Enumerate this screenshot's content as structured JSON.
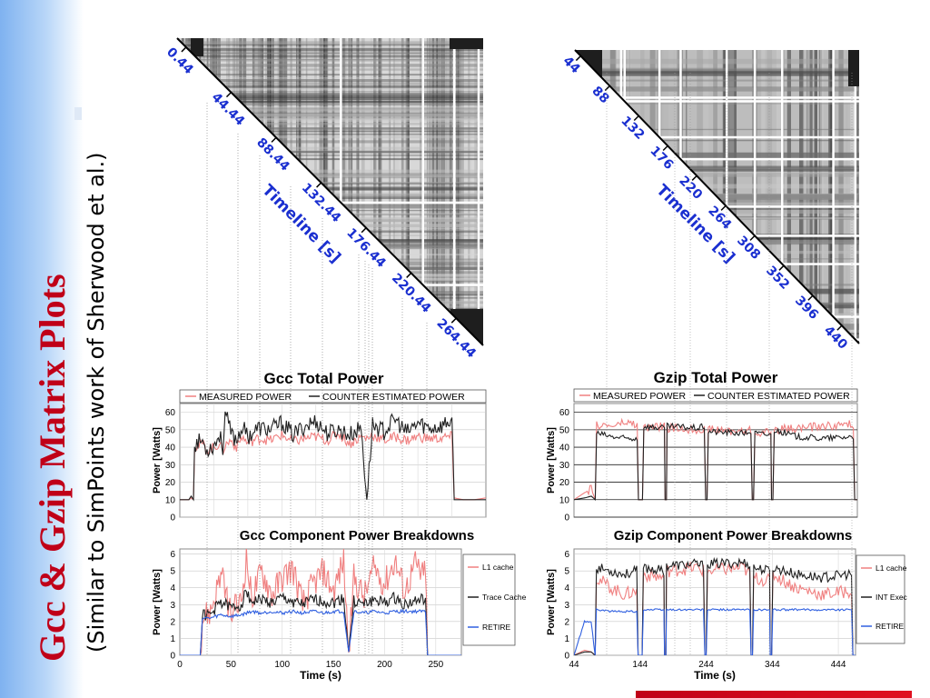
{
  "slide": {
    "title": "Gcc & Gzip Matrix Plots",
    "subtitle": "(Similar to SimPoints work of Sherwood et al.)"
  },
  "matrices": {
    "gcc": {
      "axis_label": "Timeline [s]",
      "ticks": [
        "0.44",
        "44.44",
        "88.44",
        "132.44",
        "176.44",
        "220.44",
        "264.44"
      ]
    },
    "gzip": {
      "axis_label": "Timeline [s]",
      "ticks": [
        "44",
        "88",
        "132",
        "176",
        "220",
        "264",
        "308",
        "352",
        "396",
        "440"
      ]
    }
  },
  "colors": {
    "title": "#c00018",
    "measured": "#f08080",
    "estimated": "#202020",
    "l1": "#f08080",
    "mid": "#202020",
    "retire": "#3060e0",
    "matrix_label": "#1a2fd0"
  },
  "chart_data": [
    {
      "type": "line",
      "title": "Gcc Total Power",
      "xlabel": "",
      "ylabel": "Power [Watts]",
      "xlim": [
        0,
        270
      ],
      "ylim": [
        0,
        65
      ],
      "yticks": [
        0,
        10,
        20,
        30,
        40,
        50,
        60
      ],
      "grid": true,
      "legend_position": "top",
      "series": [
        {
          "name": "MEASURED POWER",
          "color": "#f08080",
          "x": [
            0,
            8,
            10,
            12,
            13,
            20,
            22,
            24,
            30,
            35,
            38,
            40,
            45,
            50,
            55,
            60,
            65,
            70,
            80,
            90,
            100,
            110,
            120,
            130,
            140,
            150,
            160,
            165,
            170,
            180,
            190,
            200,
            210,
            220,
            230,
            238,
            240,
            242,
            250,
            260,
            270
          ],
          "y": [
            10,
            10,
            11,
            10,
            40,
            42,
            40,
            38,
            40,
            42,
            38,
            41,
            44,
            40,
            46,
            42,
            44,
            45,
            44,
            47,
            43,
            45,
            46,
            44,
            48,
            42,
            46,
            45,
            47,
            44,
            46,
            44,
            46,
            45,
            45,
            46,
            46,
            11,
            10,
            10,
            11
          ]
        },
        {
          "name": "COUNTER ESTIMATED POWER",
          "color": "#202020",
          "x": [
            0,
            8,
            10,
            12,
            13,
            20,
            22,
            24,
            30,
            35,
            38,
            40,
            45,
            50,
            55,
            60,
            65,
            70,
            80,
            90,
            100,
            110,
            120,
            130,
            140,
            150,
            160,
            165,
            170,
            180,
            190,
            200,
            210,
            220,
            230,
            238,
            240,
            242,
            250,
            260,
            270
          ],
          "y": [
            10,
            10,
            12,
            10,
            42,
            44,
            40,
            39,
            41,
            47,
            40,
            60,
            48,
            44,
            52,
            46,
            49,
            51,
            50,
            54,
            47,
            52,
            55,
            48,
            50,
            47,
            51,
            10,
            53,
            49,
            56,
            48,
            54,
            51,
            52,
            55,
            55,
            10,
            10,
            10,
            10
          ]
        }
      ]
    },
    {
      "type": "line",
      "title": "Gzip Total Power",
      "xlabel": "",
      "ylabel": "Power [Watts]",
      "xlim": [
        44,
        470
      ],
      "ylim": [
        0,
        65
      ],
      "yticks": [
        0,
        10,
        20,
        30,
        40,
        50,
        60
      ],
      "grid": true,
      "legend_position": "top",
      "series": [
        {
          "name": "MEASURED POWER",
          "color": "#f08080",
          "x": [
            44,
            60,
            70,
            76,
            78,
            100,
            120,
            139,
            141,
            147,
            149,
            180,
            181,
            183,
            184,
            230,
            240,
            242,
            244,
            246,
            300,
            310,
            312,
            314,
            316,
            340,
            341,
            343,
            345,
            380,
            420,
            460,
            464,
            466,
            470
          ],
          "y": [
            10,
            14,
            16,
            10,
            53,
            52,
            54,
            53,
            10,
            10,
            51,
            52,
            10,
            10,
            51,
            50,
            51,
            10,
            10,
            50,
            49,
            50,
            10,
            10,
            48,
            49,
            10,
            10,
            50,
            51,
            52,
            53,
            53,
            10,
            10
          ]
        },
        {
          "name": "COUNTER ESTIMATED POWER",
          "color": "#202020",
          "x": [
            44,
            60,
            70,
            76,
            78,
            100,
            120,
            139,
            141,
            147,
            149,
            180,
            181,
            183,
            184,
            230,
            240,
            242,
            244,
            246,
            300,
            310,
            312,
            314,
            316,
            340,
            341,
            343,
            345,
            380,
            420,
            460,
            464,
            466,
            470
          ],
          "y": [
            10,
            11,
            12,
            10,
            48,
            46,
            45,
            45,
            10,
            10,
            52,
            51,
            10,
            10,
            52,
            51,
            52,
            10,
            10,
            49,
            48,
            49,
            10,
            10,
            48,
            47,
            10,
            10,
            50,
            46,
            45,
            46,
            46,
            10,
            10
          ]
        }
      ]
    },
    {
      "type": "line",
      "title": "Gcc Component Power Breakdowns",
      "xlabel": "Time (s)",
      "ylabel": "Power [Watts]",
      "xlim": [
        0,
        275
      ],
      "xticks": [
        0,
        50,
        100,
        150,
        200,
        250
      ],
      "ylim": [
        0,
        6.3
      ],
      "yticks": [
        0,
        1,
        2,
        3,
        4,
        5,
        6
      ],
      "grid": true,
      "legend_position": "right",
      "series": [
        {
          "name": "L1 cache",
          "color": "#f08080",
          "x": [
            0,
            20,
            22,
            30,
            40,
            50,
            60,
            65,
            70,
            80,
            90,
            100,
            110,
            120,
            130,
            140,
            150,
            160,
            165,
            170,
            180,
            190,
            200,
            210,
            220,
            230,
            238,
            240,
            242,
            250,
            275
          ],
          "y": [
            0,
            0,
            2.2,
            2.6,
            4.8,
            2.4,
            3.2,
            5.8,
            3.4,
            5.0,
            3.6,
            4.6,
            5.2,
            3.0,
            4.2,
            5.0,
            3.8,
            5.6,
            0.2,
            4.6,
            3.4,
            5.2,
            4.2,
            5.6,
            3.8,
            5.4,
            4.6,
            5.4,
            0,
            0,
            0
          ]
        },
        {
          "name": "Trace Cache",
          "color": "#202020",
          "x": [
            0,
            20,
            22,
            30,
            40,
            50,
            60,
            65,
            70,
            80,
            90,
            100,
            110,
            120,
            130,
            140,
            150,
            160,
            165,
            170,
            180,
            190,
            200,
            210,
            220,
            230,
            238,
            240,
            242,
            250,
            275
          ],
          "y": [
            0,
            0,
            2.4,
            2.4,
            3.2,
            2.8,
            3.0,
            3.8,
            3.2,
            3.3,
            3.1,
            3.4,
            3.2,
            3.0,
            3.3,
            3.2,
            3.1,
            3.4,
            0.2,
            3.2,
            3.0,
            3.3,
            3.1,
            3.4,
            3.0,
            3.2,
            3.3,
            3.3,
            0,
            0,
            0
          ]
        },
        {
          "name": "RETIRE",
          "color": "#3060e0",
          "x": [
            0,
            20,
            22,
            30,
            40,
            50,
            60,
            65,
            70,
            80,
            90,
            100,
            110,
            120,
            130,
            140,
            150,
            160,
            165,
            170,
            180,
            190,
            200,
            210,
            220,
            230,
            238,
            240,
            242,
            250,
            275
          ],
          "y": [
            0,
            0,
            2.2,
            2.2,
            2.4,
            2.3,
            2.4,
            2.5,
            2.6,
            2.5,
            2.6,
            2.5,
            2.6,
            2.5,
            2.6,
            2.5,
            2.6,
            2.6,
            0.2,
            2.6,
            2.5,
            2.6,
            2.5,
            2.6,
            2.6,
            2.6,
            2.6,
            2.6,
            0,
            0,
            0
          ]
        }
      ]
    },
    {
      "type": "line",
      "title": "Gzip Component Power Breakdowns",
      "xlabel": "Time (s)",
      "ylabel": "Power [Watts]",
      "xlim": [
        44,
        470
      ],
      "xticks": [
        44,
        144,
        244,
        344,
        444
      ],
      "ylim": [
        0,
        6.3
      ],
      "yticks": [
        0,
        1,
        2,
        3,
        4,
        5,
        6
      ],
      "grid": true,
      "legend_position": "right",
      "series": [
        {
          "name": "L1 cache",
          "color": "#f08080",
          "x": [
            44,
            60,
            70,
            76,
            78,
            100,
            120,
            139,
            141,
            147,
            149,
            180,
            181,
            183,
            184,
            230,
            240,
            242,
            244,
            246,
            300,
            310,
            312,
            314,
            316,
            340,
            341,
            343,
            345,
            380,
            420,
            460,
            464,
            466,
            470
          ],
          "y": [
            0,
            0.3,
            0.2,
            0,
            4.6,
            4.0,
            3.6,
            3.8,
            0,
            0,
            4.8,
            4.6,
            0,
            0,
            5.0,
            5.2,
            5.0,
            0,
            0,
            5.0,
            5.2,
            4.8,
            0,
            0,
            4.6,
            4.4,
            0,
            0,
            4.8,
            4.0,
            3.6,
            3.8,
            3.8,
            0,
            0
          ]
        },
        {
          "name": "INT Exec",
          "color": "#202020",
          "x": [
            44,
            60,
            70,
            76,
            78,
            100,
            120,
            139,
            141,
            147,
            149,
            180,
            181,
            183,
            184,
            230,
            240,
            242,
            244,
            246,
            300,
            310,
            312,
            314,
            316,
            340,
            341,
            343,
            345,
            380,
            420,
            460,
            464,
            466,
            470
          ],
          "y": [
            0,
            0.2,
            0.2,
            0,
            5.2,
            5.0,
            4.8,
            5.0,
            0,
            0,
            5.2,
            5.0,
            0,
            0,
            5.3,
            5.4,
            5.3,
            0,
            0,
            5.4,
            5.5,
            5.4,
            0,
            0,
            5.2,
            5.0,
            0,
            0,
            5.2,
            4.8,
            4.6,
            4.8,
            4.8,
            0,
            0
          ]
        },
        {
          "name": "RETIRE",
          "color": "#3060e0",
          "x": [
            44,
            60,
            70,
            76,
            78,
            100,
            120,
            139,
            141,
            147,
            149,
            180,
            181,
            183,
            184,
            230,
            240,
            242,
            244,
            246,
            300,
            310,
            312,
            314,
            316,
            340,
            341,
            343,
            345,
            380,
            420,
            460,
            464,
            466,
            470
          ],
          "y": [
            0,
            2.0,
            2.0,
            0,
            2.7,
            2.6,
            2.6,
            2.6,
            0,
            0,
            2.7,
            2.7,
            0,
            0,
            2.7,
            2.7,
            2.7,
            0,
            0,
            2.7,
            2.7,
            2.7,
            0,
            0,
            2.7,
            2.7,
            0,
            0,
            2.7,
            2.7,
            2.7,
            2.7,
            2.7,
            0,
            0
          ]
        }
      ]
    }
  ]
}
